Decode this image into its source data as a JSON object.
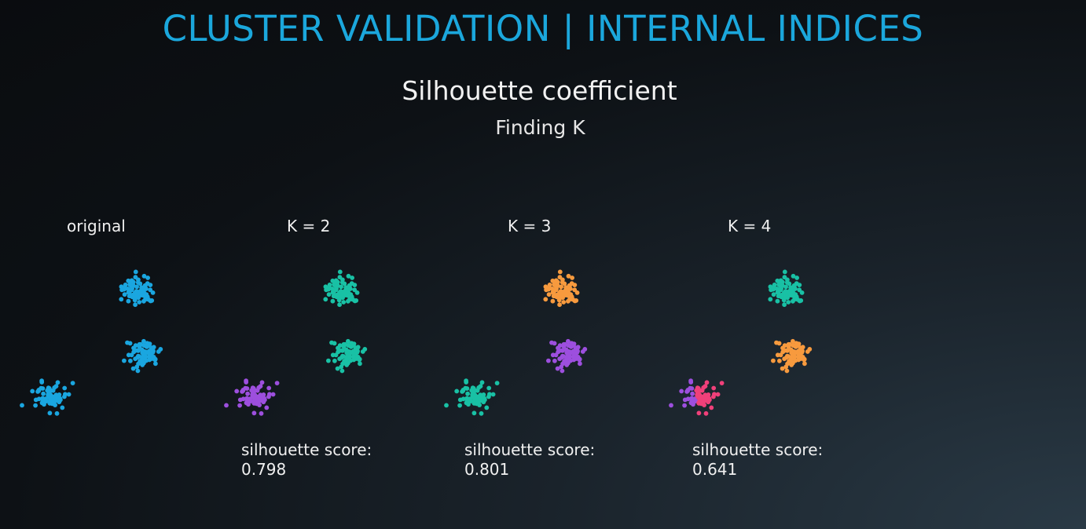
{
  "header": {
    "title": "CLUSTER VALIDATION | INTERNAL INDICES",
    "subtitle": "Silhouette coefficient",
    "subsubtitle": "Finding K"
  },
  "colors": {
    "blue": "#1aa6e0",
    "teal": "#19c1a5",
    "purple": "#9d4fde",
    "orange": "#f79a3e",
    "pink": "#f0407a"
  },
  "panels": [
    {
      "label": "original",
      "score_label": "",
      "score_value": "",
      "cluster_colors": [
        "blue",
        "blue",
        "blue"
      ]
    },
    {
      "label": "K = 2",
      "score_label": "silhouette score:",
      "score_value": "0.798",
      "cluster_colors": [
        "teal",
        "teal",
        "purple"
      ]
    },
    {
      "label": "K = 3",
      "score_label": "silhouette score:",
      "score_value": "0.801",
      "cluster_colors": [
        "orange",
        "purple",
        "teal"
      ]
    },
    {
      "label": "K = 4",
      "score_label": "silhouette score:",
      "score_value": "0.641",
      "cluster_colors": [
        "teal",
        "orange",
        "purple+pink"
      ]
    }
  ]
}
